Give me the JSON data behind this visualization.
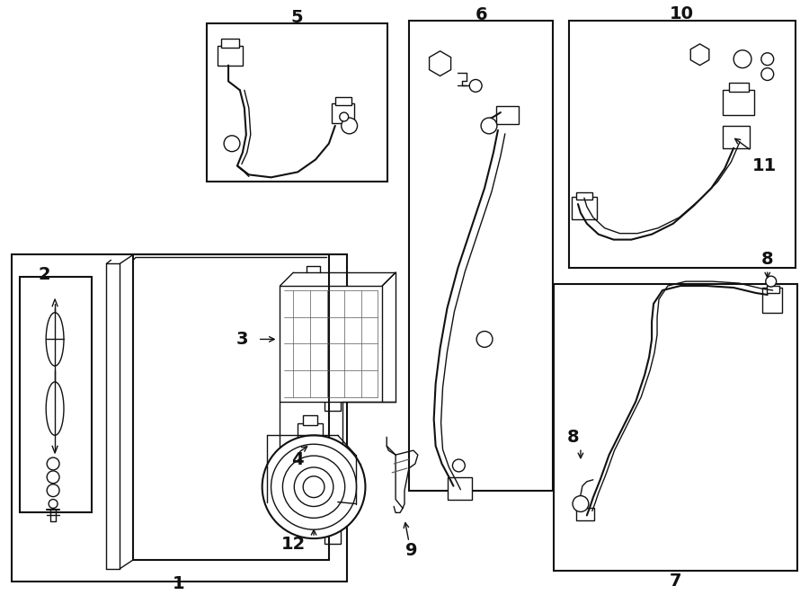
{
  "bg_color": "#ffffff",
  "line_color": "#111111",
  "fig_width": 9.0,
  "fig_height": 6.62,
  "dpi": 100,
  "title_fontsize": 13,
  "label_fontsize": 13
}
